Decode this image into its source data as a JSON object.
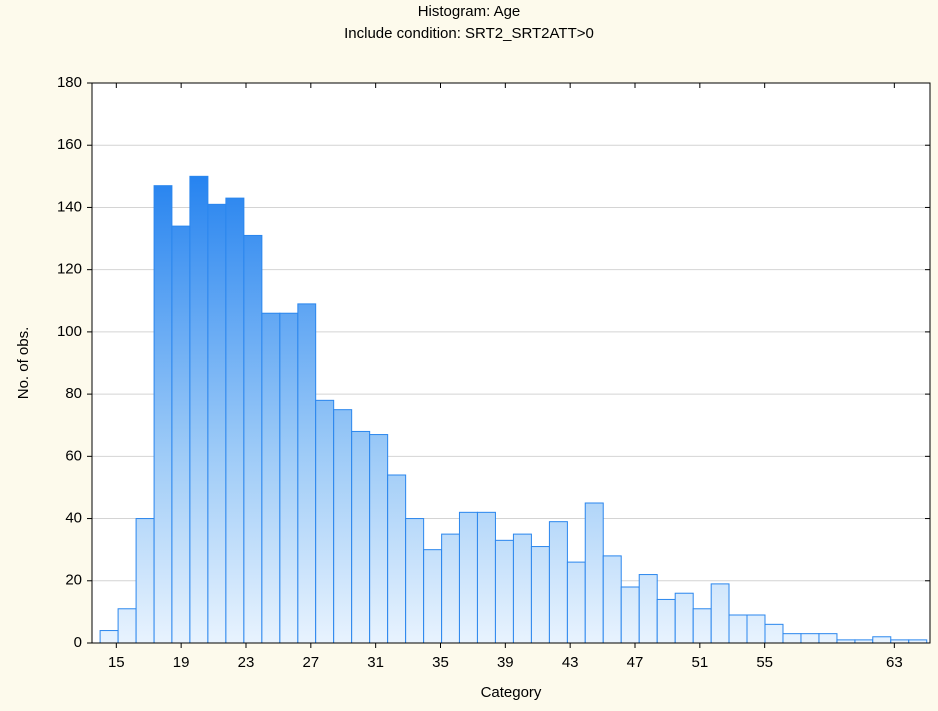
{
  "chart_data": {
    "type": "histogram",
    "title": "Histogram: Age",
    "subtitle": "Include condition: SRT2_SRT2ATT>0",
    "x_label": "Category",
    "y_label": "No. of obs.",
    "bins": [
      14,
      15.11,
      16.22,
      17.33,
      18.43,
      19.54,
      20.65,
      21.76,
      22.87,
      23.98,
      25.09,
      26.2,
      27.3,
      28.41,
      29.52,
      30.63,
      31.74,
      32.85,
      33.96,
      35.07,
      36.17,
      37.28,
      38.39,
      39.5,
      40.61,
      41.72,
      42.83,
      43.93,
      45.04,
      46.15,
      47.26,
      48.37,
      49.48,
      50.59,
      51.7,
      52.8,
      53.91,
      55.02,
      56.13,
      57.24,
      58.35,
      59.46,
      60.57,
      61.67,
      62.78,
      63.89,
      65
    ],
    "values": [
      4,
      11,
      40,
      147,
      134,
      150,
      141,
      143,
      131,
      106,
      106,
      109,
      78,
      75,
      68,
      67,
      54,
      40,
      30,
      35,
      42,
      42,
      33,
      35,
      31,
      39,
      26,
      45,
      28,
      18,
      22,
      14,
      16,
      11,
      19,
      9,
      9,
      6,
      3,
      3,
      3,
      1,
      1,
      2,
      1,
      1
    ],
    "color": "#2a86ee",
    "xlim": [
      13.5,
      65.2
    ],
    "xticks": [
      15,
      19,
      23,
      27,
      31,
      35,
      39,
      43,
      47,
      51,
      55,
      63
    ],
    "ylim": [
      0,
      180
    ],
    "yticks": [
      0,
      20,
      40,
      60,
      80,
      100,
      120,
      140,
      160,
      180
    ],
    "grid": true
  }
}
